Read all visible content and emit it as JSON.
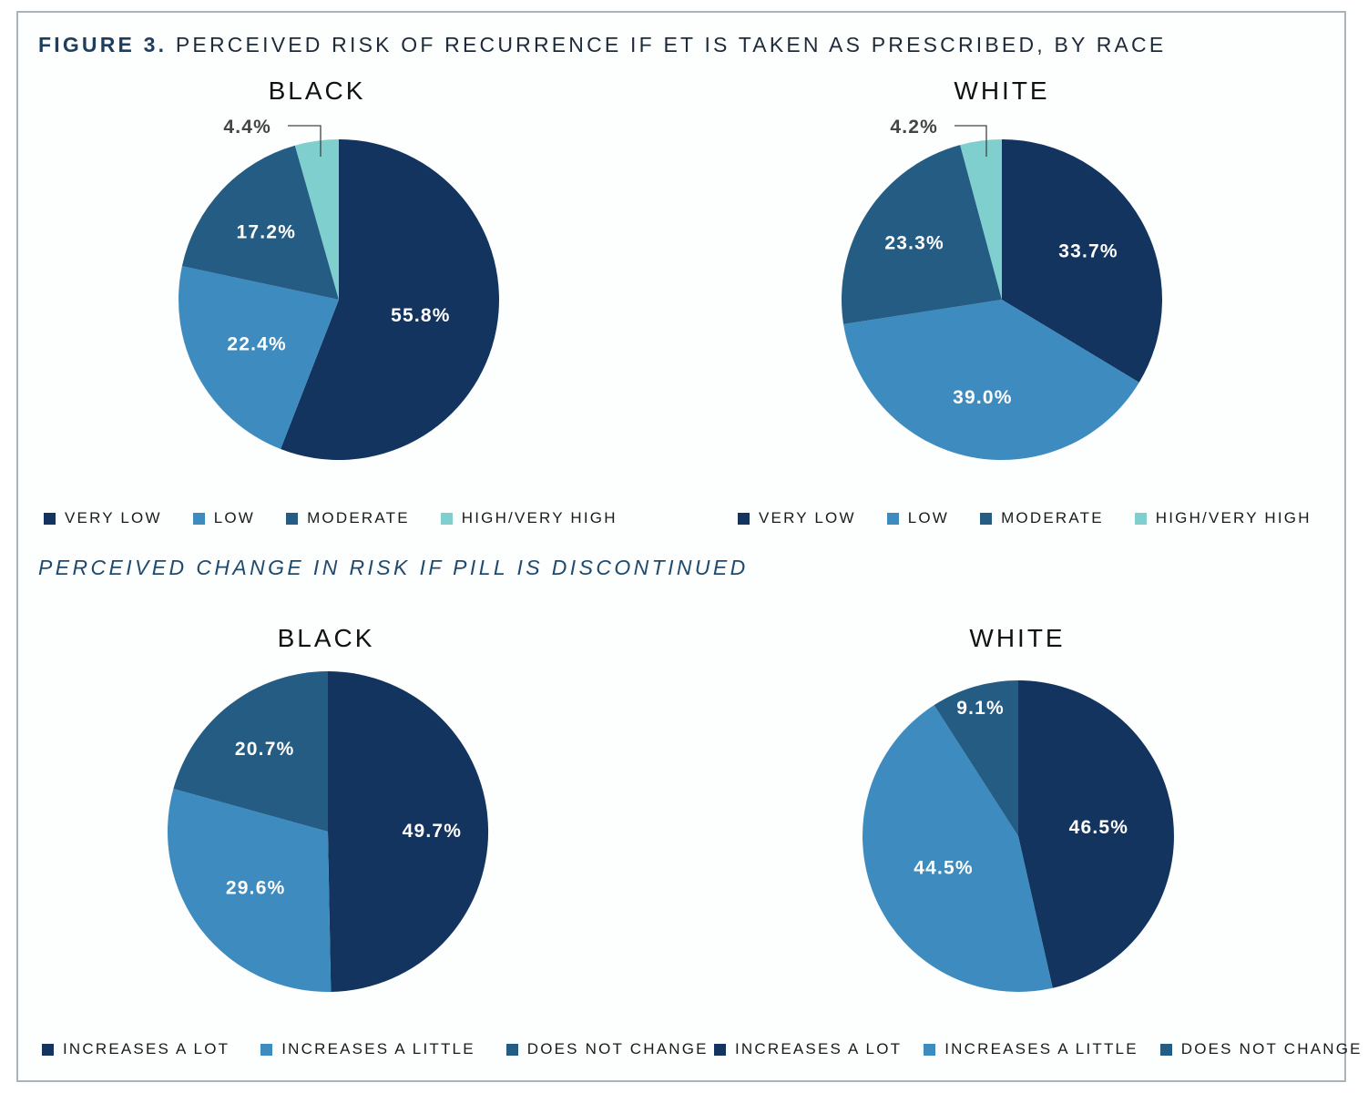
{
  "figure": {
    "label": "FIGURE 3.",
    "title": "PERCEIVED RISK OF RECURRENCE IF ET IS TAKEN AS PRESCRIBED, BY RACE",
    "subtitle": "PERCEIVED CHANGE IN RISK IF PILL IS DISCONTINUED"
  },
  "legends": {
    "risk": [
      {
        "label": "VERY LOW",
        "color": "#13345e"
      },
      {
        "label": "LOW",
        "color": "#3d8bbf"
      },
      {
        "label": "MODERATE",
        "color": "#245c84"
      },
      {
        "label": "HIGH/VERY HIGH",
        "color": "#7ecfcd"
      }
    ],
    "change": [
      {
        "label": "INCREASES A LOT",
        "color": "#13345e"
      },
      {
        "label": "INCREASES A LITTLE",
        "color": "#3d8bbf"
      },
      {
        "label": "DOES NOT CHANGE",
        "color": "#245c84"
      }
    ]
  },
  "chart_data": [
    {
      "type": "pie",
      "title": "BLACK",
      "group": "Perceived risk of recurrence if ET is taken as prescribed",
      "categories": [
        "VERY LOW",
        "LOW",
        "MODERATE",
        "HIGH/VERY HIGH"
      ],
      "values": [
        55.8,
        22.4,
        17.2,
        4.4
      ],
      "labels": [
        "55.8%",
        "22.4%",
        "17.2%",
        "4.4%"
      ],
      "colors": [
        "#13345e",
        "#3d8bbf",
        "#245c84",
        "#7ecfcd"
      ]
    },
    {
      "type": "pie",
      "title": "WHITE",
      "group": "Perceived risk of recurrence if ET is taken as prescribed",
      "categories": [
        "VERY LOW",
        "LOW",
        "MODERATE",
        "HIGH/VERY HIGH"
      ],
      "values": [
        33.7,
        39.0,
        23.3,
        4.2
      ],
      "labels": [
        "33.7%",
        "39.0%",
        "23.3%",
        "4.2%"
      ],
      "colors": [
        "#13345e",
        "#3d8bbf",
        "#245c84",
        "#7ecfcd"
      ]
    },
    {
      "type": "pie",
      "title": "BLACK",
      "group": "Perceived change in risk if pill is discontinued",
      "categories": [
        "INCREASES A LOT",
        "INCREASES A LITTLE",
        "DOES NOT CHANGE"
      ],
      "values": [
        49.7,
        29.6,
        20.7
      ],
      "labels": [
        "49.7%",
        "29.6%",
        "20.7%"
      ],
      "colors": [
        "#13345e",
        "#3d8bbf",
        "#245c84"
      ]
    },
    {
      "type": "pie",
      "title": "WHITE",
      "group": "Perceived change in risk if pill is discontinued",
      "categories": [
        "INCREASES A LOT",
        "INCREASES A LITTLE",
        "DOES NOT CHANGE"
      ],
      "values": [
        46.5,
        44.5,
        9.1
      ],
      "labels": [
        "46.5%",
        "44.5%",
        "9.1%"
      ],
      "colors": [
        "#13345e",
        "#3d8bbf",
        "#245c84"
      ]
    }
  ]
}
